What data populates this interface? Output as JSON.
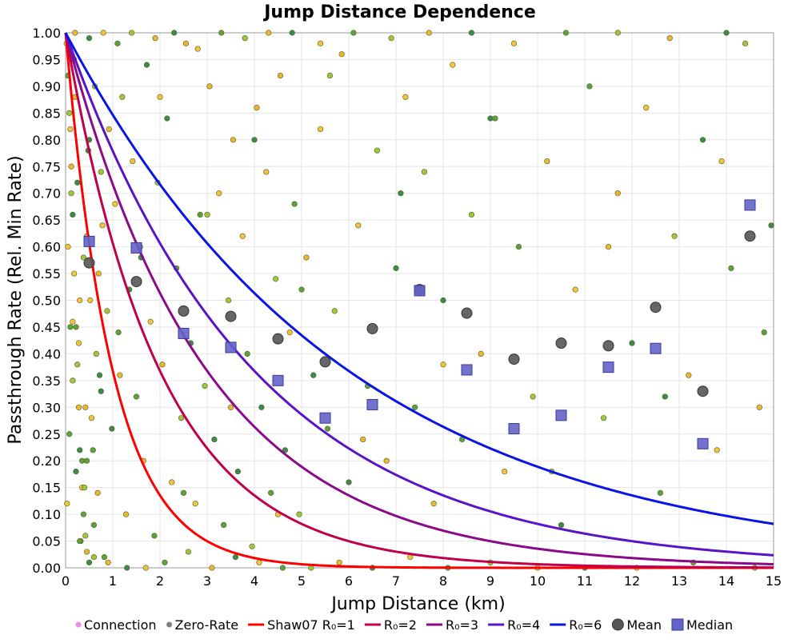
{
  "chart_data": {
    "type": "scatter",
    "title": "Jump Distance Dependence",
    "xlabel": "Jump Distance (km)",
    "ylabel": "Passthrough Rate (Rel. Min Rate)",
    "xlim": [
      0,
      15
    ],
    "ylim": [
      0,
      1
    ],
    "x_ticks": [
      0,
      1,
      2,
      3,
      4,
      5,
      6,
      7,
      8,
      9,
      10,
      11,
      12,
      13,
      14,
      15
    ],
    "y_ticks": [
      0,
      0.05,
      0.1,
      0.15,
      0.2,
      0.25,
      0.3,
      0.35,
      0.4,
      0.45,
      0.5,
      0.55,
      0.6,
      0.65,
      0.7,
      0.75,
      0.8,
      0.85,
      0.9,
      0.95,
      1.0
    ],
    "grid": true,
    "legend_position": "bottom",
    "legend": [
      {
        "label": "Connection",
        "kind": "dot",
        "color": "#f08ae6"
      },
      {
        "label": "Zero-Rate",
        "kind": "dot",
        "color": "#808080"
      },
      {
        "label": "Shaw07 R₀=1",
        "kind": "line",
        "color": "#ff0000"
      },
      {
        "label": "R₀=2",
        "kind": "line",
        "color": "#c0004a"
      },
      {
        "label": "R₀=3",
        "kind": "line",
        "color": "#8a0a8a"
      },
      {
        "label": "R₀=4",
        "kind": "line",
        "color": "#5a14c8"
      },
      {
        "label": "R₀=6",
        "kind": "line",
        "color": "#0a14e6"
      },
      {
        "label": "Mean",
        "kind": "circle",
        "color": "#555555"
      },
      {
        "label": "Median",
        "kind": "square",
        "color": "#6464c8"
      }
    ],
    "curves": [
      {
        "name": "Shaw07 R₀=1",
        "R0": 1,
        "color": "#ff0000"
      },
      {
        "name": "R₀=2",
        "R0": 2,
        "color": "#c0004a"
      },
      {
        "name": "R₀=3",
        "R0": 3,
        "color": "#8a0a8a"
      },
      {
        "name": "R₀=4",
        "R0": 4,
        "color": "#5a14c8"
      },
      {
        "name": "R₀=6",
        "R0": 6,
        "color": "#0a14e6"
      }
    ],
    "mean": {
      "x": [
        0.5,
        1.5,
        2.5,
        3.5,
        4.5,
        5.5,
        6.5,
        7.5,
        8.5,
        9.5,
        10.5,
        11.5,
        12.5,
        13.5,
        14.5
      ],
      "y": [
        0.57,
        0.535,
        0.48,
        0.47,
        0.428,
        0.385,
        0.447,
        0.52,
        0.476,
        0.39,
        0.42,
        0.415,
        0.487,
        0.33,
        0.62
      ]
    },
    "median": {
      "x": [
        0.5,
        1.5,
        2.5,
        3.5,
        4.5,
        5.5,
        6.5,
        7.5,
        8.5,
        9.5,
        10.5,
        11.5,
        12.5,
        13.5,
        14.5
      ],
      "y": [
        0.61,
        0.598,
        0.438,
        0.412,
        0.35,
        0.28,
        0.305,
        0.518,
        0.37,
        0.26,
        0.285,
        0.375,
        0.41,
        0.232,
        0.678
      ]
    },
    "scatter_points": {
      "x": [
        0.02,
        0.05,
        0.08,
        0.12,
        0.15,
        0.18,
        0.22,
        0.25,
        0.28,
        0.3,
        0.35,
        0.38,
        0.42,
        0.45,
        0.5,
        0.05,
        0.1,
        0.15,
        0.2,
        0.25,
        0.3,
        0.35,
        0.4,
        0.45,
        0.5,
        0.55,
        0.6,
        0.65,
        0.7,
        0.75,
        0.03,
        0.08,
        0.12,
        0.18,
        0.22,
        0.28,
        0.32,
        0.38,
        0.42,
        0.48,
        0.52,
        0.58,
        0.62,
        0.68,
        0.72,
        0.78,
        0.82,
        0.88,
        0.92,
        0.98,
        1.05,
        1.12,
        1.2,
        1.28,
        1.35,
        1.42,
        1.5,
        1.58,
        1.65,
        1.72,
        1.8,
        1.88,
        1.95,
        2.05,
        2.15,
        2.25,
        2.35,
        2.45,
        2.55,
        2.65,
        2.75,
        2.85,
        2.95,
        3.05,
        3.15,
        3.25,
        3.35,
        3.45,
        3.55,
        3.65,
        3.75,
        3.85,
        3.95,
        4.05,
        4.15,
        4.25,
        4.35,
        4.45,
        4.55,
        4.65,
        4.75,
        4.85,
        4.95,
        5.1,
        5.25,
        5.4,
        5.55,
        5.7,
        5.85,
        6.0,
        6.2,
        6.4,
        6.6,
        6.8,
        7.0,
        7.2,
        7.4,
        7.6,
        7.8,
        8.0,
        8.2,
        8.4,
        8.6,
        8.8,
        9.0,
        9.3,
        9.6,
        9.9,
        10.2,
        10.5,
        10.8,
        11.1,
        11.4,
        11.7,
        12.0,
        12.3,
        12.6,
        12.9,
        13.2,
        13.5,
        13.8,
        14.1,
        14.4,
        14.7,
        14.95,
        0.1,
        0.3,
        0.6,
        0.9,
        1.3,
        1.7,
        2.1,
        2.6,
        3.1,
        3.6,
        4.1,
        4.6,
        5.2,
        5.8,
        6.5,
        7.3,
        8.1,
        9.0,
        10.0,
        11.0,
        12.1,
        13.3,
        14.6,
        0.2,
        0.5,
        0.8,
        1.1,
        1.4,
        1.9,
        2.3,
        2.8,
        3.3,
        3.8,
        4.3,
        4.8,
        5.4,
        6.1,
        6.9,
        7.7,
        8.6,
        9.5,
        10.6,
        11.7,
        12.8,
        14.0,
        0.15,
        0.45,
        0.75,
        1.15,
        1.6,
        2.0,
        2.5,
        3.0,
        3.5,
        4.0,
        4.5,
        5.0,
        5.6,
        6.3,
        7.1,
        8.0,
        9.1,
        10.3,
        11.5,
        12.7,
        13.9,
        14.8
      ],
      "y": [
        0.98,
        0.92,
        0.85,
        0.75,
        0.66,
        0.55,
        0.45,
        0.38,
        0.3,
        0.22,
        0.15,
        0.1,
        0.06,
        0.03,
        0.01,
        0.6,
        0.45,
        0.35,
        0.88,
        0.72,
        0.5,
        0.2,
        0.15,
        0.62,
        0.8,
        0.28,
        0.08,
        0.4,
        0.55,
        0.33,
        0.12,
        0.25,
        0.7,
        0.95,
        0.18,
        0.42,
        0.05,
        0.58,
        0.3,
        0.78,
        0.5,
        0.22,
        0.9,
        0.14,
        0.36,
        0.64,
        0.02,
        0.48,
        0.82,
        0.26,
        0.68,
        0.44,
        0.88,
        0.1,
        0.52,
        0.76,
        0.32,
        0.6,
        0.2,
        0.94,
        0.46,
        0.06,
        0.72,
        0.38,
        0.84,
        0.16,
        0.56,
        0.28,
        0.98,
        0.42,
        0.12,
        0.66,
        0.34,
        0.9,
        0.24,
        0.7,
        0.08,
        0.5,
        0.8,
        0.18,
        0.62,
        0.4,
        0.04,
        0.86,
        0.3,
        0.74,
        0.14,
        0.54,
        0.92,
        0.22,
        0.44,
        0.68,
        0.1,
        0.58,
        0.36,
        0.82,
        0.26,
        0.48,
        0.96,
        0.16,
        0.64,
        0.34,
        0.78,
        0.2,
        0.56,
        0.88,
        0.3,
        0.74,
        0.12,
        0.5,
        0.94,
        0.24,
        0.66,
        0.4,
        0.84,
        0.18,
        0.6,
        0.32,
        0.76,
        0.08,
        0.52,
        0.9,
        0.28,
        0.7,
        0.42,
        0.86,
        0.14,
        0.62,
        0.36,
        0.8,
        0.22,
        0.56,
        0.98,
        0.3,
        0.64,
        0.82,
        0.05,
        0.02,
        0.01,
        0.0,
        0.0,
        0.01,
        0.03,
        0.0,
        0.02,
        0.01,
        0.0,
        0.0,
        0.01,
        0.0,
        0.02,
        0.0,
        0.01,
        0.0,
        0.0,
        0.0,
        0.01,
        0.0,
        1.0,
        0.99,
        1.0,
        0.98,
        1.0,
        0.99,
        1.0,
        0.97,
        1.0,
        0.99,
        1.0,
        1.0,
        0.98,
        1.0,
        0.99,
        1.0,
        1.0,
        0.98,
        1.0,
        1.0,
        0.99,
        1.0,
        0.46,
        0.2,
        0.74,
        0.36,
        0.58,
        0.88,
        0.14,
        0.66,
        0.3,
        0.8,
        0.1,
        0.52,
        0.92,
        0.24,
        0.7,
        0.38,
        0.84,
        0.18,
        0.6,
        0.32,
        0.76,
        0.44
      ]
    }
  }
}
